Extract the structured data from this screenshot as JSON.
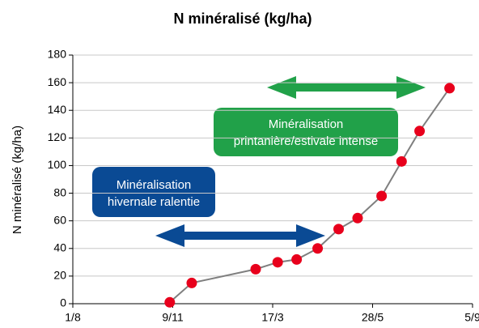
{
  "chart_data": {
    "type": "line",
    "title": "N minéralisé (kg/ha)",
    "y_label": "N minéralisé (kg/ha)",
    "x": [
      0.97,
      1.19,
      1.83,
      2.05,
      2.24,
      2.45,
      2.66,
      2.85,
      3.09,
      3.29,
      3.47,
      3.77
    ],
    "series": [
      {
        "name": "N minéralisé",
        "color": "#7f7f7f",
        "marker_color": "#e8001c",
        "values": [
          1,
          15,
          25,
          30,
          32,
          40,
          54,
          62,
          78,
          103,
          125,
          156
        ]
      }
    ],
    "xlim": [
      0,
      4
    ],
    "xticks": [
      {
        "value": 0,
        "label": "1/8"
      },
      {
        "value": 1,
        "label": "9/11"
      },
      {
        "value": 2,
        "label": "17/3"
      },
      {
        "value": 3,
        "label": "28/5"
      },
      {
        "value": 4,
        "label": "5/9"
      }
    ],
    "ylim": [
      0,
      180
    ],
    "yticks": [
      0,
      20,
      40,
      60,
      80,
      100,
      120,
      140,
      160,
      180
    ],
    "grid": true,
    "annotations": [
      {
        "lines": [
          "Minéralisation",
          "hivernale ralentie"
        ],
        "color": "#0a4a94"
      },
      {
        "lines": [
          "Minéralisation",
          "printanière/estivale intense"
        ],
        "color": "#21a149"
      }
    ]
  }
}
